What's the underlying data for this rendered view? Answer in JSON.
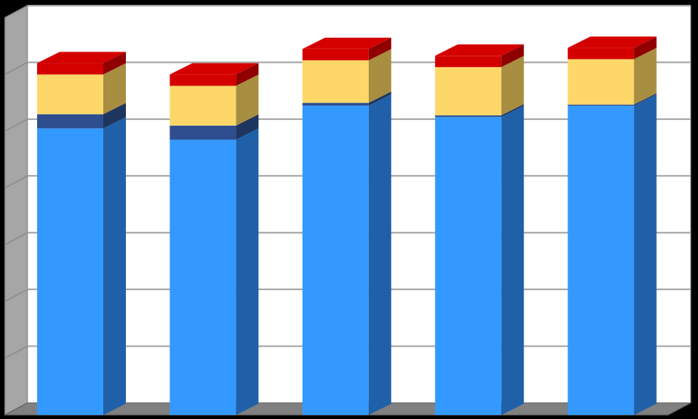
{
  "chart_data": {
    "type": "bar",
    "stacked": true,
    "three_d": true,
    "categories": [
      "",
      "",
      "",
      "",
      ""
    ],
    "series": [
      {
        "color": "#3399FF",
        "side_color": "#2060A8",
        "values": [
          5.05,
          4.85,
          5.45,
          5.25,
          5.45
        ]
      },
      {
        "color": "#2E4E8F",
        "side_color": "#1E3560",
        "values": [
          0.25,
          0.25,
          0.05,
          0.03,
          0.02
        ]
      },
      {
        "color": "#FDD868",
        "side_color": "#A88E40",
        "values": [
          0.7,
          0.7,
          0.75,
          0.85,
          0.8
        ]
      },
      {
        "color": "#D40000",
        "side_color": "#900000",
        "values": [
          0.2,
          0.2,
          0.2,
          0.2,
          0.2
        ]
      }
    ],
    "ylim": [
      0,
      7
    ],
    "grid": true,
    "legend": "none",
    "colors": {
      "background": "#000000",
      "plot_area": "#FFFFFF",
      "side_wall": "#A6A6A6",
      "floor": "#808080",
      "gridline": "#A6A6A6"
    }
  }
}
